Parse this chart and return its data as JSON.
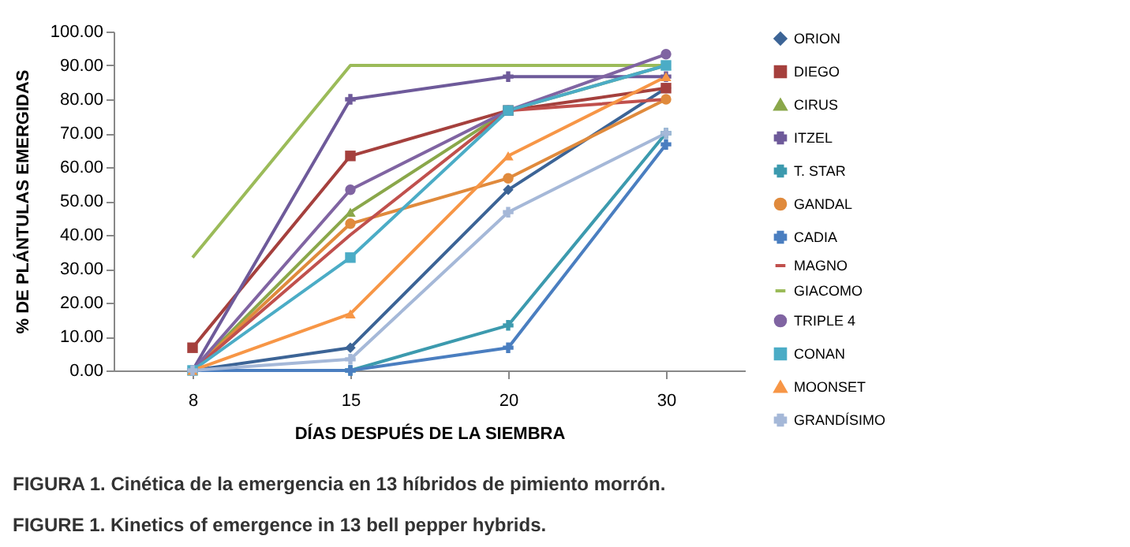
{
  "chart_data": {
    "type": "line",
    "xlabel": "DÍAS DESPUÉS DE LA SIEMBRA",
    "ylabel": "% DE PLÁNTULAS EMERGIDAS",
    "categories": [
      "8",
      "15",
      "20",
      "30"
    ],
    "ylim": [
      0,
      100
    ],
    "yticks": [
      {
        "value": 0,
        "label": "0.00"
      },
      {
        "value": 10,
        "label": "10.00"
      },
      {
        "value": 20,
        "label": "20.00"
      },
      {
        "value": 30,
        "label": "30.00"
      },
      {
        "value": 40,
        "label": "40.00"
      },
      {
        "value": 50,
        "label": "50.00"
      },
      {
        "value": 60,
        "label": "60.00"
      },
      {
        "value": 70,
        "label": "70.00"
      },
      {
        "value": 80,
        "label": "80.00"
      },
      {
        "value": 90,
        "label": "90.00"
      },
      {
        "value": 100,
        "label": "100.00"
      }
    ],
    "grid": false,
    "legend": "right",
    "series": [
      {
        "name": "ORION",
        "color": "#3c6496",
        "marker": "diamond",
        "values": [
          0,
          6.7,
          53.3,
          83.3
        ]
      },
      {
        "name": "DIEGO",
        "color": "#a5403d",
        "marker": "square",
        "values": [
          6.7,
          63.3,
          76.7,
          83.3
        ]
      },
      {
        "name": "CIRUS",
        "color": "#8aa74a",
        "marker": "triangle",
        "values": [
          0,
          46.7,
          76.7,
          90
        ]
      },
      {
        "name": "ITZEL",
        "color": "#6e5a9a",
        "marker": "cross",
        "values": [
          0,
          80,
          86.7,
          86.7
        ]
      },
      {
        "name": "T. STAR",
        "color": "#3c9aae",
        "marker": "cross",
        "values": [
          0,
          0,
          13.3,
          70
        ]
      },
      {
        "name": "GANDAL",
        "color": "#e08a3c",
        "marker": "circle",
        "values": [
          0,
          43.3,
          56.7,
          80
        ]
      },
      {
        "name": "CADIA",
        "color": "#4a7ec0",
        "marker": "cross",
        "values": [
          0,
          0,
          6.7,
          66.7
        ]
      },
      {
        "name": "MAGNO",
        "color": "#c0504d",
        "marker": "none",
        "values": [
          0,
          40,
          76.7,
          80
        ]
      },
      {
        "name": "GIACOMO",
        "color": "#9bbb59",
        "marker": "none",
        "values": [
          33.3,
          90,
          90,
          90
        ]
      },
      {
        "name": "TRIPLE 4",
        "color": "#8064a2",
        "marker": "circle",
        "values": [
          0,
          53.3,
          76.7,
          93.3
        ]
      },
      {
        "name": "CONAN",
        "color": "#4bacc6",
        "marker": "square",
        "values": [
          0,
          33.3,
          76.7,
          90
        ]
      },
      {
        "name": "MOONSET",
        "color": "#f79646",
        "marker": "triangle",
        "values": [
          0,
          16.7,
          63.3,
          86.7
        ]
      },
      {
        "name": "GRANDÍSIMO",
        "color": "#a5b8d8",
        "marker": "cross",
        "values": [
          0,
          3.3,
          46.7,
          70
        ]
      }
    ],
    "annotations": [
      "FIGURA 1. Cinética de la emergencia en 13 híbridos de pimiento morrón.",
      "FIGURE 1. Kinetics of emergence in 13 bell pepper hybrids."
    ]
  }
}
